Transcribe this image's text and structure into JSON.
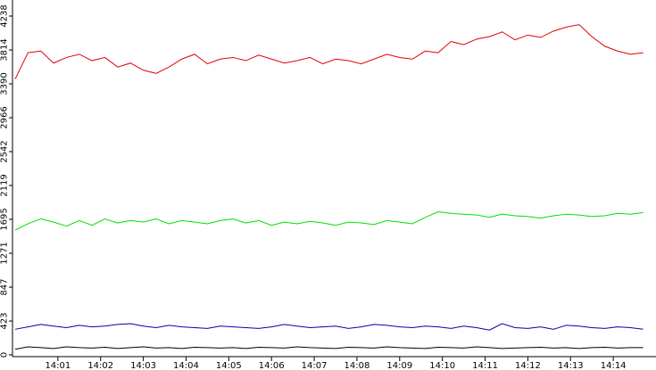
{
  "chart_data": {
    "type": "line",
    "x": [
      0,
      0.3,
      0.6,
      0.9,
      1.2,
      1.5,
      1.8,
      2.1,
      2.4,
      2.7,
      3,
      3.3,
      3.6,
      3.9,
      4.2,
      4.5,
      4.8,
      5.1,
      5.4,
      5.7,
      6,
      6.3,
      6.6,
      6.9,
      7.2,
      7.5,
      7.8,
      8.1,
      8.4,
      8.7,
      9,
      9.3,
      9.6,
      9.9,
      10.2,
      10.5,
      10.8,
      11.1,
      11.4,
      11.7,
      12,
      12.3,
      12.6,
      12.9,
      13.2,
      13.5,
      13.8,
      14.1,
      14.4,
      14.7
    ],
    "series": [
      {
        "color": "#e00000",
        "values": [
          3450,
          3780,
          3800,
          3650,
          3720,
          3760,
          3680,
          3720,
          3600,
          3650,
          3560,
          3520,
          3600,
          3700,
          3760,
          3640,
          3700,
          3720,
          3680,
          3750,
          3700,
          3650,
          3680,
          3720,
          3640,
          3700,
          3680,
          3640,
          3700,
          3760,
          3720,
          3700,
          3800,
          3780,
          3920,
          3880,
          3950,
          3980,
          4040,
          3940,
          4000,
          3970,
          4050,
          4100,
          4130,
          3980,
          3860,
          3800,
          3760,
          3780
        ]
      },
      {
        "color": "#00e000",
        "values": [
          1560,
          1640,
          1700,
          1660,
          1610,
          1680,
          1620,
          1700,
          1650,
          1680,
          1660,
          1700,
          1640,
          1680,
          1660,
          1640,
          1680,
          1700,
          1650,
          1680,
          1620,
          1660,
          1640,
          1670,
          1650,
          1620,
          1660,
          1650,
          1630,
          1680,
          1660,
          1640,
          1720,
          1790,
          1770,
          1760,
          1750,
          1720,
          1760,
          1740,
          1730,
          1710,
          1740,
          1760,
          1750,
          1730,
          1740,
          1770,
          1760,
          1780
        ]
      },
      {
        "color": "#0000b0",
        "values": [
          320,
          350,
          380,
          360,
          340,
          370,
          350,
          360,
          380,
          390,
          360,
          340,
          370,
          350,
          340,
          330,
          360,
          350,
          340,
          330,
          350,
          380,
          360,
          340,
          350,
          360,
          330,
          350,
          380,
          370,
          350,
          340,
          360,
          350,
          330,
          360,
          340,
          310,
          390,
          340,
          330,
          350,
          320,
          370,
          360,
          340,
          330,
          350,
          340,
          320
        ]
      },
      {
        "color": "#000000",
        "values": [
          70,
          100,
          90,
          80,
          100,
          90,
          85,
          95,
          80,
          90,
          100,
          85,
          90,
          80,
          95,
          90,
          85,
          90,
          80,
          95,
          90,
          85,
          100,
          90,
          85,
          80,
          95,
          90,
          85,
          100,
          90,
          85,
          80,
          95,
          90,
          85,
          100,
          90,
          80,
          85,
          90,
          95,
          85,
          90,
          80,
          90,
          95,
          85,
          90,
          90
        ]
      }
    ],
    "xlim": [
      0,
      15
    ],
    "xticks": [
      {
        "value": 1,
        "label": "14:01"
      },
      {
        "value": 2,
        "label": "14:02"
      },
      {
        "value": 3,
        "label": "14:03"
      },
      {
        "value": 4,
        "label": "14:04"
      },
      {
        "value": 5,
        "label": "14:05"
      },
      {
        "value": 6,
        "label": "14:06"
      },
      {
        "value": 7,
        "label": "14:07"
      },
      {
        "value": 8,
        "label": "14:08"
      },
      {
        "value": 9,
        "label": "14:09"
      },
      {
        "value": 10,
        "label": "14:10"
      },
      {
        "value": 11,
        "label": "14:11"
      },
      {
        "value": 12,
        "label": "14:12"
      },
      {
        "value": 13,
        "label": "14:13"
      },
      {
        "value": 14,
        "label": "14:14"
      }
    ],
    "ylim": [
      0,
      4238
    ],
    "yticks": [
      0,
      423,
      847,
      1271,
      1695,
      2119,
      2542,
      2966,
      3390,
      3814,
      4238
    ]
  }
}
